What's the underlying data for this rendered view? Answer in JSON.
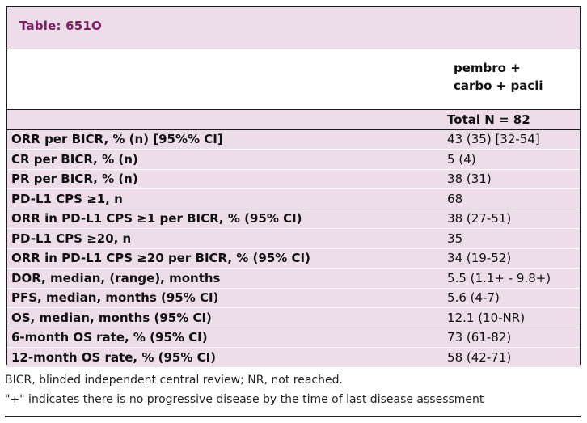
{
  "table": {
    "title": "Table: 651O",
    "column_header": "pembro +\ncarbo + pacli",
    "total_label": "",
    "total_value": "Total N = 82",
    "rows": [
      {
        "label": "ORR per BICR, % (n) [95%% CI]",
        "value": "43 (35) [32-54]"
      },
      {
        "label": "CR per BICR, % (n)",
        "value": "5 (4)"
      },
      {
        "label": "PR per BICR, % (n)",
        "value": "38 (31)"
      },
      {
        "label": "PD-L1 CPS ≥1, n",
        "value": "68"
      },
      {
        "label": "ORR in PD-L1 CPS ≥1 per BICR, % (95% CI)",
        "value": "38 (27-51)"
      },
      {
        "label": "PD-L1 CPS ≥20, n",
        "value": "35"
      },
      {
        "label": "ORR in PD-L1 CPS ≥20 per BICR, % (95% CI)",
        "value": "34 (19-52)"
      },
      {
        "label": "DOR, median, (range), months",
        "value": "5.5 (1.1+ - 9.8+)"
      },
      {
        "label": "PFS, median, months (95% CI)",
        "value": "5.6 (4-7)"
      },
      {
        "label": "OS, median, months (95% CI)",
        "value": "12.1 (10-NR)"
      },
      {
        "label": "6-month OS rate, % (95% CI)",
        "value": "73 (61-82)"
      },
      {
        "label": "12-month OS rate, % (95% CI)",
        "value": "58 (42-71)"
      }
    ]
  },
  "footnotes": {
    "line1": "BICR, blinded independent central review; NR, not reached.",
    "line2": "\"+\" indicates there is no progressive disease by the time of last disease assessment"
  },
  "colors": {
    "shade": "#ecdde9",
    "title_text": "#7a2160",
    "border": "#1a1a1a"
  }
}
